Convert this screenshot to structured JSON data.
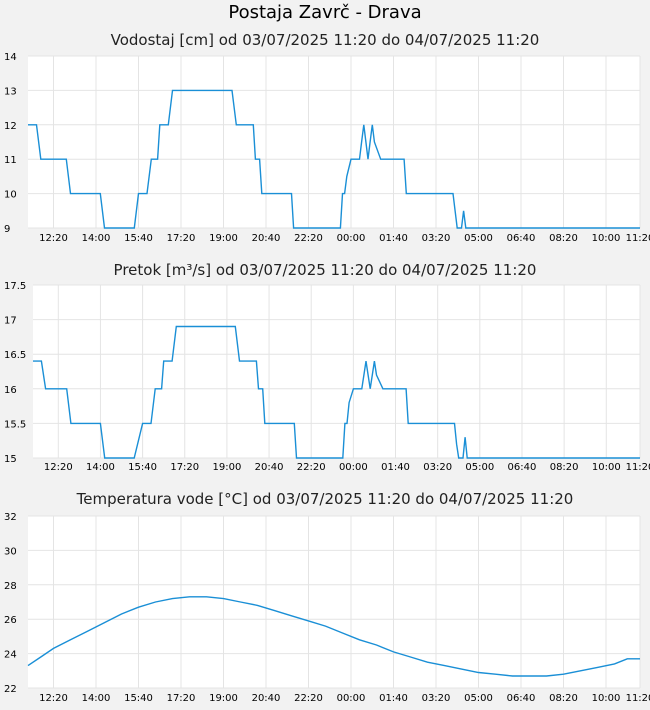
{
  "page_title": "Postaja Zavrč - Drava",
  "colors": {
    "line": "#1a8fd6",
    "grid": "#e4e4e4",
    "background": "#f2f2f2"
  },
  "chart_data": [
    {
      "type": "line",
      "title": "Vodostaj [cm] od 03/07/2025 11:20 do 04/07/2025 11:20",
      "ylim": [
        9,
        14
      ],
      "yticks": [
        9,
        10,
        11,
        12,
        13,
        14
      ],
      "yticklabels": [
        "9",
        "10",
        "11",
        "12",
        "13",
        "14"
      ],
      "xlim": [
        0,
        1440
      ],
      "xticks": [
        60,
        160,
        260,
        360,
        460,
        560,
        660,
        760,
        860,
        960,
        1060,
        1160,
        1260,
        1360,
        1440
      ],
      "xticklabels": [
        "12:20",
        "14:00",
        "15:40",
        "17:20",
        "19:00",
        "20:40",
        "22:20",
        "00:00",
        "01:40",
        "03:20",
        "05:00",
        "06:40",
        "08:20",
        "10:00",
        "11:20"
      ],
      "x": [
        0,
        20,
        30,
        90,
        100,
        170,
        180,
        240,
        250,
        260,
        280,
        290,
        300,
        305,
        310,
        320,
        330,
        340,
        350,
        355,
        365,
        370,
        375,
        480,
        490,
        500,
        530,
        535,
        545,
        550,
        555,
        560,
        620,
        625,
        630,
        640,
        650,
        720,
        725,
        735,
        740,
        745,
        750,
        760,
        780,
        785,
        790,
        795,
        800,
        805,
        810,
        815,
        830,
        885,
        890,
        900,
        905,
        910,
        915,
        1000,
        1005,
        1010,
        1015,
        1020,
        1025,
        1030,
        1440
      ],
      "values": [
        12,
        12,
        11,
        11,
        10,
        10,
        9,
        9,
        9,
        10,
        10,
        11,
        11,
        11,
        12,
        12,
        12,
        13,
        13,
        13,
        13,
        13,
        13,
        13,
        12,
        12,
        12,
        11,
        11,
        10,
        10,
        10,
        10,
        9,
        9,
        9,
        9,
        9,
        9,
        9,
        10,
        10,
        10.5,
        11,
        11,
        11.5,
        12,
        11.5,
        11,
        11.5,
        12,
        11.5,
        11,
        11,
        10,
        10,
        10,
        10,
        10,
        10,
        9.5,
        9,
        9,
        9,
        9.5,
        9,
        9
      ]
    },
    {
      "type": "line",
      "title": "Pretok [m³/s] od 03/07/2025 11:20 do 04/07/2025 11:20",
      "ylim": [
        15,
        17.5
      ],
      "yticks": [
        15,
        15.5,
        16,
        16.5,
        17,
        17.5
      ],
      "yticklabels": [
        "15",
        "15.5",
        "16",
        "16.5",
        "17",
        "17.5"
      ],
      "xlim": [
        0,
        1440
      ],
      "xticks": [
        60,
        160,
        260,
        360,
        460,
        560,
        660,
        760,
        860,
        960,
        1060,
        1160,
        1260,
        1360,
        1440
      ],
      "xticklabels": [
        "12:20",
        "14:00",
        "15:40",
        "17:20",
        "19:00",
        "20:40",
        "22:20",
        "00:00",
        "01:40",
        "03:20",
        "05:00",
        "06:40",
        "08:20",
        "10:00",
        "11:20"
      ],
      "x": [
        0,
        20,
        30,
        80,
        90,
        160,
        170,
        230,
        240,
        260,
        280,
        290,
        300,
        305,
        310,
        320,
        330,
        340,
        350,
        355,
        365,
        370,
        375,
        480,
        490,
        500,
        530,
        535,
        545,
        550,
        555,
        560,
        620,
        625,
        630,
        640,
        650,
        720,
        725,
        735,
        740,
        745,
        750,
        760,
        780,
        785,
        790,
        795,
        800,
        805,
        810,
        815,
        830,
        885,
        890,
        900,
        905,
        910,
        915,
        1000,
        1005,
        1010,
        1015,
        1020,
        1025,
        1030,
        1440
      ],
      "values": [
        16.4,
        16.4,
        16,
        16,
        15.5,
        15.5,
        15,
        15,
        15,
        15.5,
        15.5,
        16,
        16,
        16,
        16.4,
        16.4,
        16.4,
        16.9,
        16.9,
        16.9,
        16.9,
        16.9,
        16.9,
        16.9,
        16.4,
        16.4,
        16.4,
        16,
        16,
        15.5,
        15.5,
        15.5,
        15.5,
        15,
        15,
        15,
        15,
        15,
        15,
        15,
        15.5,
        15.5,
        15.8,
        16,
        16,
        16.2,
        16.4,
        16.2,
        16,
        16.2,
        16.4,
        16.2,
        16,
        16,
        15.5,
        15.5,
        15.5,
        15.5,
        15.5,
        15.5,
        15.2,
        15,
        15,
        15,
        15.3,
        15,
        15
      ]
    },
    {
      "type": "line",
      "title": "Temperatura vode [°C] od 03/07/2025 11:20 do 04/07/2025 11:20",
      "ylim": [
        22,
        32
      ],
      "yticks": [
        22,
        24,
        26,
        28,
        30,
        32
      ],
      "yticklabels": [
        "22",
        "24",
        "26",
        "28",
        "30",
        "32"
      ],
      "xlim": [
        0,
        1440
      ],
      "xticks": [
        60,
        160,
        260,
        360,
        460,
        560,
        660,
        760,
        860,
        960,
        1060,
        1160,
        1260,
        1360,
        1440
      ],
      "xticklabels": [
        "12:20",
        "14:00",
        "15:40",
        "17:20",
        "19:00",
        "20:40",
        "22:20",
        "00:00",
        "01:40",
        "03:20",
        "05:00",
        "06:40",
        "08:20",
        "10:00",
        "11:20"
      ],
      "x": [
        0,
        30,
        60,
        100,
        140,
        180,
        220,
        260,
        300,
        340,
        380,
        420,
        460,
        500,
        540,
        580,
        620,
        660,
        700,
        740,
        780,
        820,
        860,
        900,
        940,
        980,
        1020,
        1060,
        1100,
        1140,
        1180,
        1220,
        1260,
        1300,
        1340,
        1380,
        1410,
        1440
      ],
      "values": [
        23.3,
        23.8,
        24.3,
        24.8,
        25.3,
        25.8,
        26.3,
        26.7,
        27.0,
        27.2,
        27.3,
        27.3,
        27.2,
        27.0,
        26.8,
        26.5,
        26.2,
        25.9,
        25.6,
        25.2,
        24.8,
        24.5,
        24.1,
        23.8,
        23.5,
        23.3,
        23.1,
        22.9,
        22.8,
        22.7,
        22.7,
        22.7,
        22.8,
        23.0,
        23.2,
        23.4,
        23.7,
        23.7
      ]
    }
  ]
}
